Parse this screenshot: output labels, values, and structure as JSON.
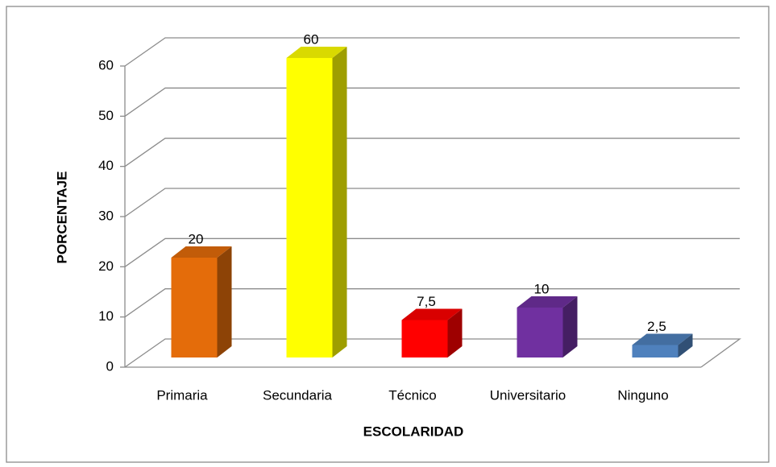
{
  "chart_data": {
    "type": "bar3d",
    "categories": [
      "Primaria",
      "Secundaria",
      "Técnico",
      "Universitario",
      "Ninguno"
    ],
    "values": [
      20,
      60,
      7.5,
      10,
      2.5
    ],
    "value_labels": [
      "20",
      "60",
      "7,5",
      "10",
      "2,5"
    ],
    "colors": [
      "#e46c0a",
      "#ffff00",
      "#ff0000",
      "#7030a0",
      "#4f81bd"
    ],
    "ylim": [
      0,
      60
    ],
    "yticks": [
      0,
      10,
      20,
      30,
      40,
      50,
      60
    ],
    "grid": true,
    "x_label": "ESCOLARIDAD",
    "y_label": "PORCENTAJE"
  }
}
